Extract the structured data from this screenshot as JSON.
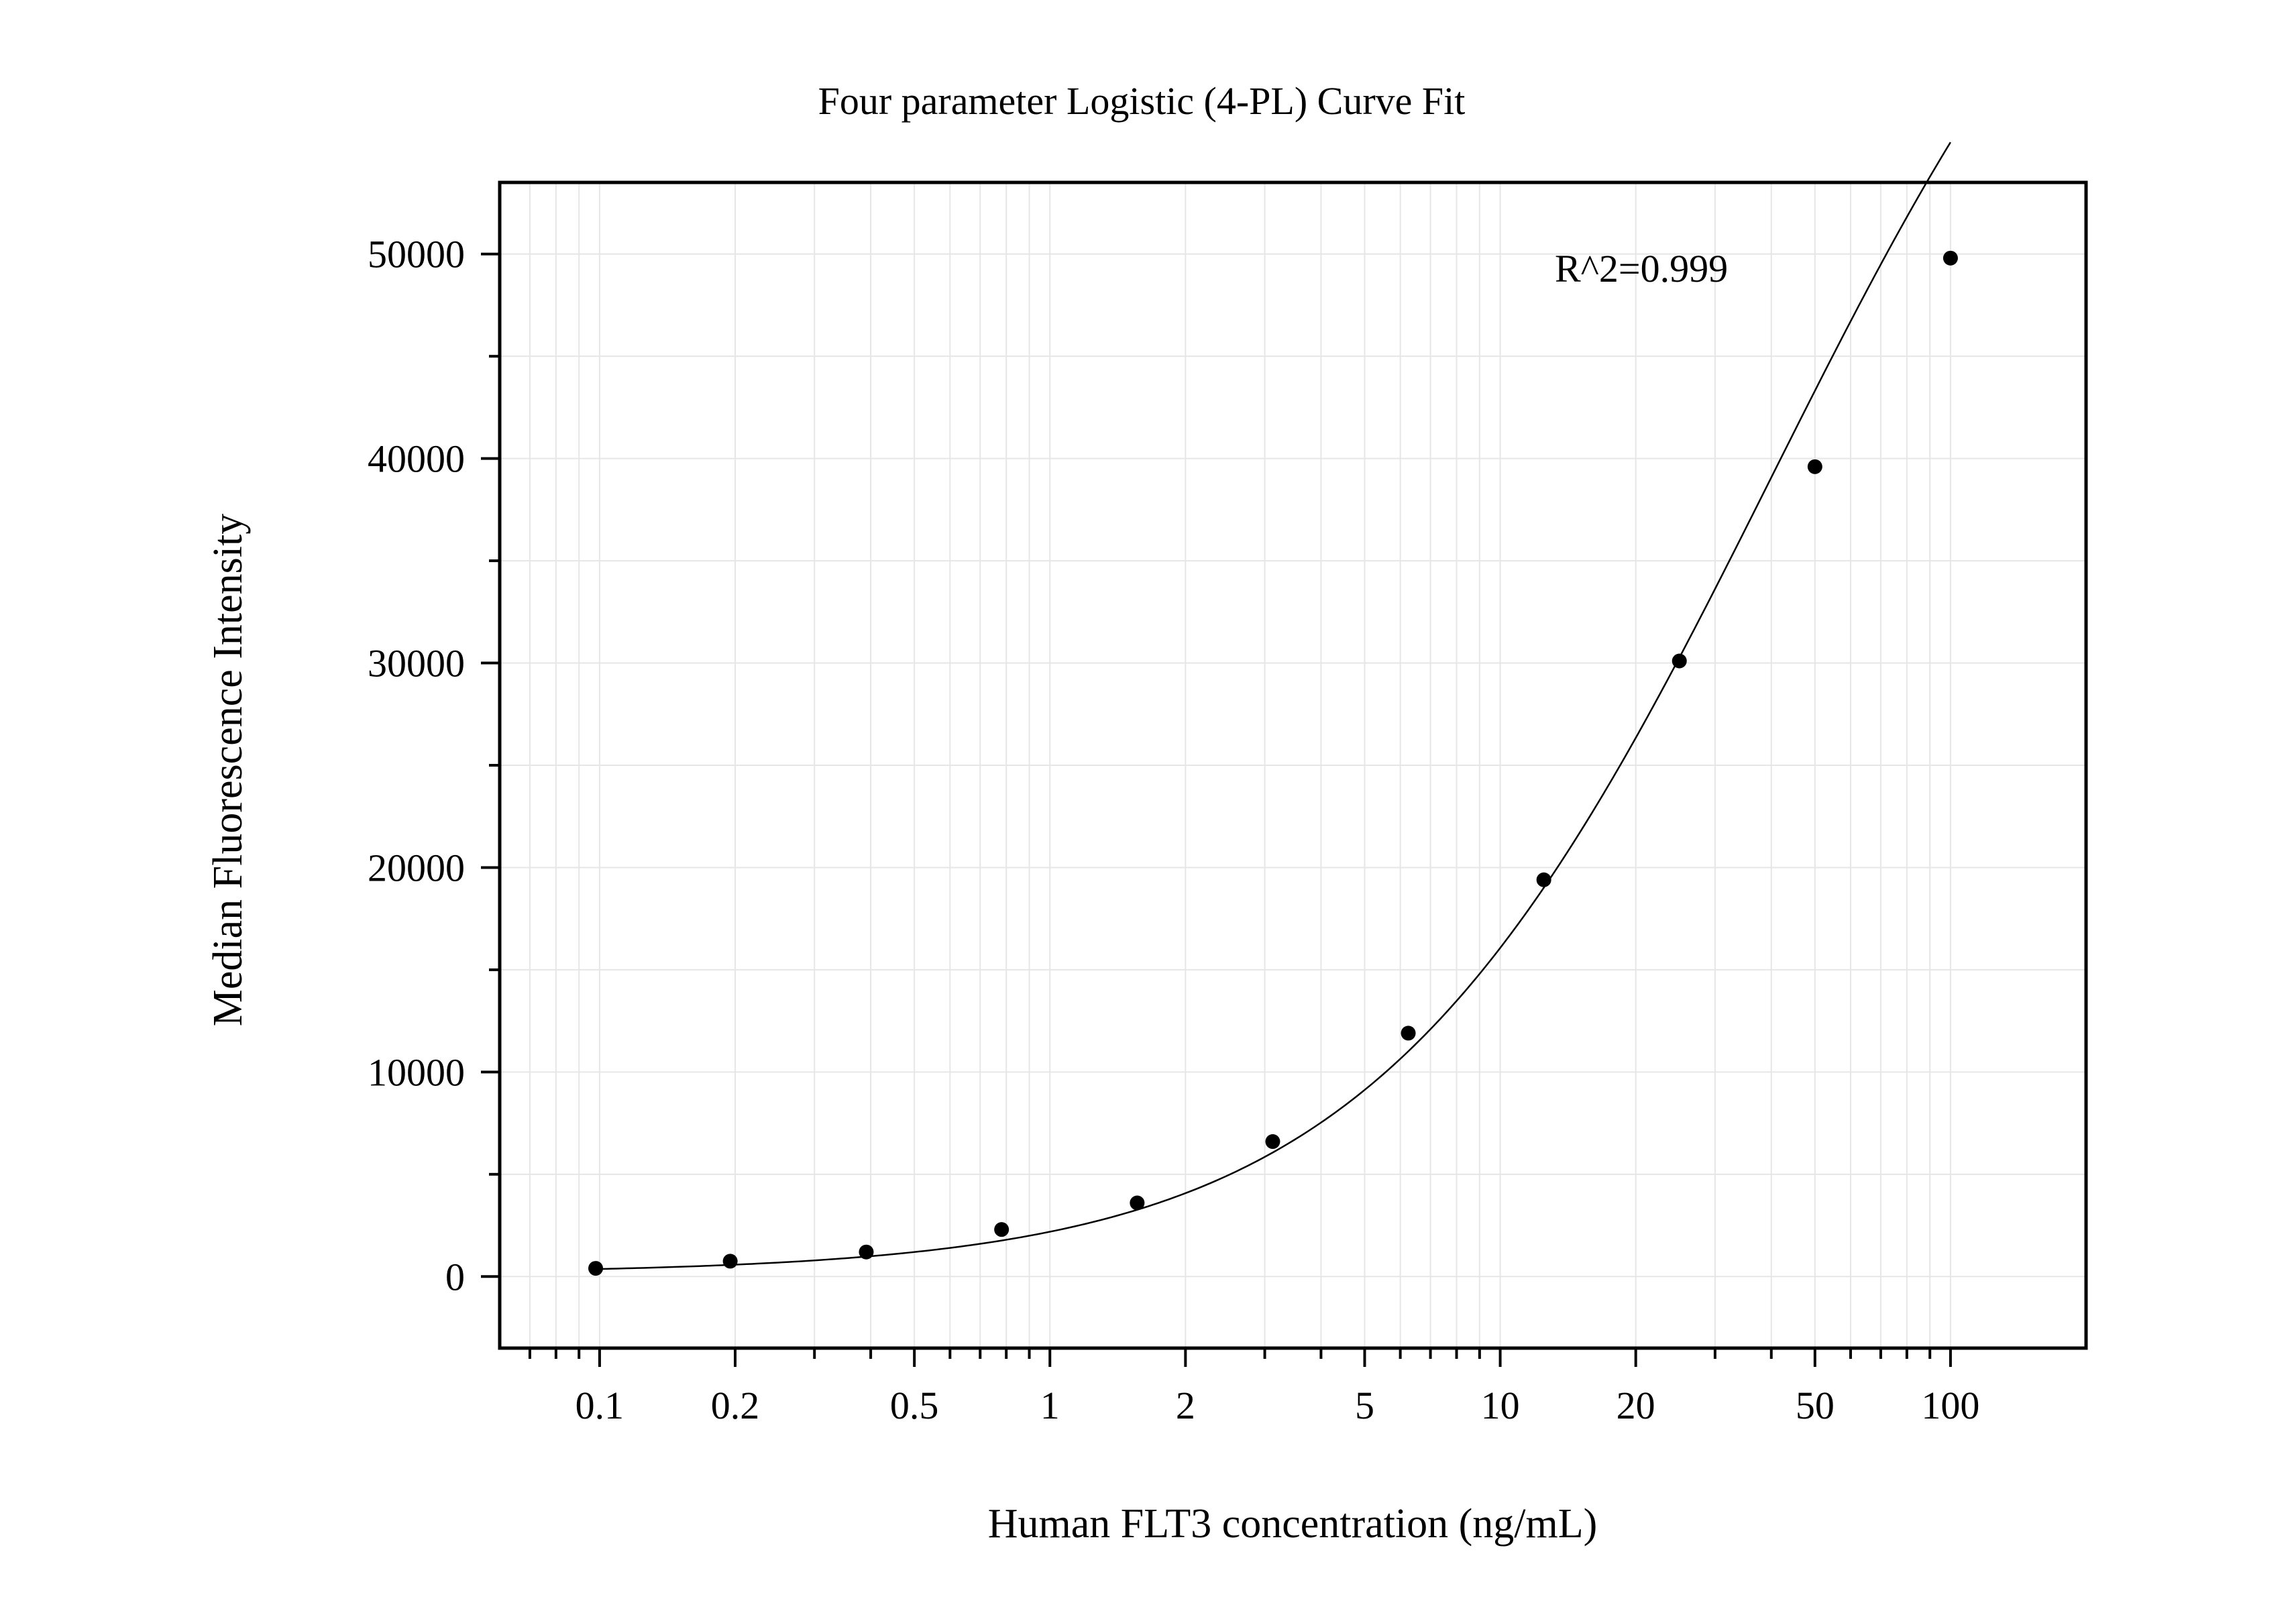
{
  "chart_data": {
    "type": "scatter",
    "title": "Four parameter Logistic (4-PL) Curve Fit",
    "xlabel": "Human FLT3 concentration (ng/mL)",
    "ylabel": "Median Fluorescence Intensity",
    "annotation": "R^2=0.999",
    "x_scale": "log",
    "xlim": [
      0.06,
      200
    ],
    "ylim": [
      -3500,
      53500
    ],
    "grid": true,
    "x_ticks": [
      0.1,
      0.2,
      0.5,
      1,
      2,
      5,
      10,
      20,
      50,
      100
    ],
    "x_tick_labels": [
      "0.1",
      "0.2",
      "0.5",
      "1",
      "2",
      "5",
      "10",
      "20",
      "50",
      "100"
    ],
    "y_ticks": [
      0,
      10000,
      20000,
      30000,
      40000,
      50000
    ],
    "y_tick_labels": [
      "0",
      "10000",
      "20000",
      "30000",
      "40000",
      "50000"
    ],
    "series": [
      {
        "name": "",
        "marker": "circle",
        "x": [
          0.098,
          0.195,
          0.391,
          0.781,
          1.5625,
          3.125,
          6.25,
          12.5,
          25,
          50,
          100
        ],
        "y": [
          400,
          750,
          1200,
          2300,
          3600,
          6600,
          11900,
          19400,
          30100,
          39600,
          49800
        ]
      }
    ],
    "fit_curve": {
      "model": "4PL",
      "bottom": 150,
      "top": 78000,
      "ec50": 40,
      "hill": 0.98
    }
  },
  "colors": {
    "points": "#000000",
    "curve": "#000000",
    "grid": "#e6e6e6",
    "axes": "#000000"
  }
}
